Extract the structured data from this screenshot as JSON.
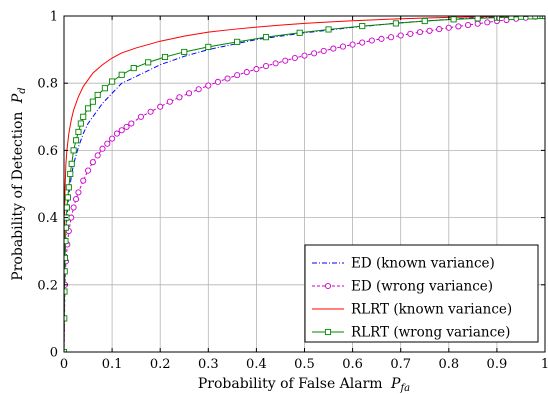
{
  "chart_data": {
    "type": "line",
    "xlabel": "Probability of False Alarm",
    "xlabel_sub": "fa",
    "xlabel_var": "P",
    "ylabel": "Probability of Detection",
    "ylabel_sub": "d",
    "ylabel_var": "P",
    "xlim": [
      0,
      1
    ],
    "ylim": [
      0,
      1
    ],
    "grid": true,
    "legend_position": "bottom-right",
    "x_ticks": [
      "0",
      "0.1",
      "0.2",
      "0.3",
      "0.4",
      "0.5",
      "0.6",
      "0.7",
      "0.8",
      "0.9",
      "1"
    ],
    "y_ticks": [
      "0",
      "0.2",
      "0.4",
      "0.6",
      "0.8",
      "1"
    ],
    "series": [
      {
        "name": "ED (known variance)",
        "color": "#0000ff",
        "style": "dash-dot",
        "marker": "none",
        "x": [
          0,
          0.001,
          0.003,
          0.006,
          0.01,
          0.015,
          0.02,
          0.03,
          0.04,
          0.05,
          0.06,
          0.08,
          0.1,
          0.12,
          0.15,
          0.2,
          0.25,
          0.3,
          0.35,
          0.4,
          0.45,
          0.5,
          0.55,
          0.6,
          0.65,
          0.7,
          0.75,
          0.8,
          0.85,
          0.9,
          0.95,
          1.0
        ],
        "y": [
          0,
          0.2,
          0.32,
          0.4,
          0.47,
          0.52,
          0.56,
          0.61,
          0.65,
          0.68,
          0.7,
          0.74,
          0.77,
          0.8,
          0.82,
          0.855,
          0.88,
          0.9,
          0.915,
          0.93,
          0.94,
          0.95,
          0.958,
          0.966,
          0.973,
          0.98,
          0.985,
          0.99,
          0.994,
          0.997,
          0.999,
          1.0
        ]
      },
      {
        "name": "ED (wrong variance)",
        "color": "#cc00cc",
        "style": "dashed",
        "marker": "circle",
        "x": [
          0,
          0.002,
          0.004,
          0.007,
          0.01,
          0.015,
          0.02,
          0.025,
          0.03,
          0.04,
          0.05,
          0.06,
          0.07,
          0.08,
          0.09,
          0.1,
          0.11,
          0.12,
          0.13,
          0.14,
          0.16,
          0.18,
          0.2,
          0.22,
          0.24,
          0.26,
          0.28,
          0.3,
          0.32,
          0.34,
          0.36,
          0.38,
          0.4,
          0.42,
          0.44,
          0.46,
          0.48,
          0.5,
          0.52,
          0.54,
          0.56,
          0.58,
          0.6,
          0.62,
          0.64,
          0.66,
          0.68,
          0.7,
          0.72,
          0.74,
          0.76,
          0.78,
          0.8,
          0.82,
          0.84,
          0.86,
          0.88,
          0.9,
          0.92,
          0.94,
          0.96,
          0.98,
          1.0
        ],
        "y": [
          0,
          0.2,
          0.27,
          0.32,
          0.36,
          0.4,
          0.43,
          0.455,
          0.475,
          0.51,
          0.54,
          0.565,
          0.585,
          0.605,
          0.62,
          0.635,
          0.65,
          0.66,
          0.67,
          0.68,
          0.7,
          0.715,
          0.73,
          0.745,
          0.758,
          0.77,
          0.782,
          0.793,
          0.804,
          0.814,
          0.824,
          0.833,
          0.842,
          0.851,
          0.859,
          0.867,
          0.875,
          0.882,
          0.889,
          0.896,
          0.903,
          0.909,
          0.915,
          0.921,
          0.927,
          0.932,
          0.937,
          0.942,
          0.947,
          0.952,
          0.956,
          0.961,
          0.965,
          0.969,
          0.973,
          0.977,
          0.981,
          0.985,
          0.988,
          0.992,
          0.995,
          0.998,
          1.0
        ]
      },
      {
        "name": "RLRT (known variance)",
        "color": "#ff0000",
        "style": "solid",
        "marker": "none",
        "x": [
          0,
          0.001,
          0.002,
          0.004,
          0.006,
          0.01,
          0.015,
          0.02,
          0.03,
          0.04,
          0.05,
          0.06,
          0.08,
          0.1,
          0.12,
          0.15,
          0.2,
          0.25,
          0.3,
          0.35,
          0.4,
          0.45,
          0.5,
          0.55,
          0.6,
          0.65,
          0.7,
          0.8,
          0.9,
          1.0
        ],
        "y": [
          0,
          0.38,
          0.48,
          0.56,
          0.6,
          0.65,
          0.69,
          0.72,
          0.76,
          0.79,
          0.81,
          0.83,
          0.855,
          0.875,
          0.89,
          0.905,
          0.925,
          0.94,
          0.952,
          0.96,
          0.967,
          0.973,
          0.978,
          0.982,
          0.986,
          0.989,
          0.992,
          0.996,
          0.999,
          1.0
        ]
      },
      {
        "name": "RLRT (wrong variance)",
        "color": "#008800",
        "style": "solid",
        "marker": "square",
        "x": [
          0,
          0.0005,
          0.001,
          0.0015,
          0.002,
          0.003,
          0.004,
          0.005,
          0.006,
          0.008,
          0.01,
          0.013,
          0.016,
          0.02,
          0.025,
          0.03,
          0.035,
          0.04,
          0.05,
          0.06,
          0.07,
          0.085,
          0.1,
          0.12,
          0.145,
          0.175,
          0.21,
          0.25,
          0.3,
          0.36,
          0.42,
          0.49,
          0.55,
          0.62,
          0.69,
          0.75,
          0.81,
          0.86,
          0.9,
          0.93,
          0.95,
          0.97,
          0.98,
          0.99,
          0.995,
          1.0
        ],
        "y": [
          0,
          0.1,
          0.18,
          0.24,
          0.28,
          0.33,
          0.37,
          0.4,
          0.43,
          0.46,
          0.49,
          0.53,
          0.56,
          0.6,
          0.63,
          0.655,
          0.68,
          0.7,
          0.725,
          0.745,
          0.765,
          0.785,
          0.805,
          0.825,
          0.845,
          0.862,
          0.878,
          0.893,
          0.908,
          0.923,
          0.937,
          0.95,
          0.96,
          0.97,
          0.978,
          0.985,
          0.99,
          0.993,
          0.995,
          0.997,
          0.998,
          0.999,
          0.9995,
          1.0,
          1.0,
          1.0
        ]
      }
    ]
  }
}
